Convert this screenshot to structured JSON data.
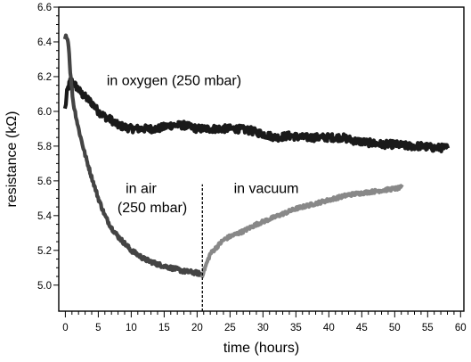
{
  "chart_data": {
    "type": "line",
    "xlabel": "time (hours)",
    "ylabel": "resistance (kΩ)",
    "xlim": [
      -1,
      60.5
    ],
    "ylim": [
      4.85,
      6.6
    ],
    "x_ticks": [
      0,
      5,
      10,
      15,
      20,
      25,
      30,
      35,
      40,
      45,
      50,
      55,
      60
    ],
    "y_ticks": [
      5.0,
      5.2,
      5.4,
      5.6,
      5.8,
      6.0,
      6.2,
      6.4,
      6.6
    ],
    "grid": false,
    "series": [
      {
        "color": "#1a1a1a",
        "noise": 0.022,
        "x": [
          0,
          0.3,
          0.8,
          1.5,
          2.5,
          4,
          5,
          6,
          7,
          8,
          10,
          12,
          14,
          16,
          18,
          20,
          22,
          24,
          26,
          28,
          30,
          32,
          34,
          36,
          38,
          40,
          42,
          44,
          46,
          48,
          50,
          52,
          54,
          56,
          58
        ],
        "y": [
          6.02,
          6.12,
          6.18,
          6.15,
          6.1,
          6.05,
          6.0,
          5.97,
          5.95,
          5.92,
          5.9,
          5.9,
          5.9,
          5.92,
          5.92,
          5.9,
          5.9,
          5.9,
          5.9,
          5.89,
          5.87,
          5.85,
          5.86,
          5.85,
          5.85,
          5.85,
          5.85,
          5.83,
          5.82,
          5.81,
          5.81,
          5.8,
          5.8,
          5.79,
          5.79
        ]
      },
      {
        "color": "#444444",
        "noise": 0.012,
        "x": [
          0,
          0.2,
          0.5,
          0.8,
          1.2,
          2,
          3,
          4,
          5,
          6,
          7,
          8,
          9,
          10,
          12,
          14,
          16,
          18,
          20,
          20.8
        ],
        "y": [
          6.42,
          6.44,
          6.38,
          6.2,
          6.05,
          5.9,
          5.75,
          5.62,
          5.5,
          5.4,
          5.33,
          5.28,
          5.24,
          5.2,
          5.15,
          5.12,
          5.1,
          5.08,
          5.07,
          5.06
        ]
      },
      {
        "color": "#888888",
        "noise": 0.01,
        "x": [
          20.8,
          21.5,
          22,
          23,
          24,
          25,
          27,
          29,
          31,
          33,
          35,
          37,
          39,
          41,
          43,
          45,
          47,
          49,
          51
        ],
        "y": [
          5.06,
          5.13,
          5.18,
          5.22,
          5.26,
          5.28,
          5.31,
          5.35,
          5.38,
          5.41,
          5.44,
          5.46,
          5.48,
          5.5,
          5.52,
          5.53,
          5.54,
          5.55,
          5.56
        ]
      }
    ],
    "annotations": [
      {
        "text": "in oxygen (250 mbar)",
        "x": 16.5,
        "y": 6.15
      },
      {
        "text": "in air",
        "x": 11.5,
        "y": 5.53
      },
      {
        "text": "(250 mbar)",
        "x": 13.2,
        "y": 5.42
      },
      {
        "text": "in vacuum",
        "x": 30.5,
        "y": 5.53
      }
    ],
    "marker_line": {
      "x": 20.8,
      "y_from": 4.85,
      "y_to": 5.58
    }
  }
}
